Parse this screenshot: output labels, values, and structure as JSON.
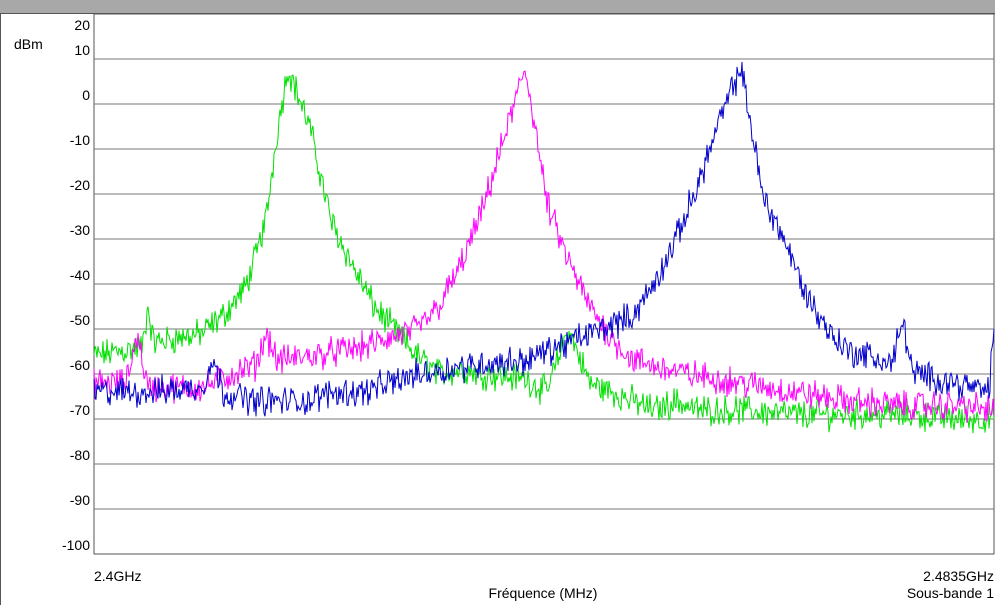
{
  "chart_data": {
    "type": "line",
    "unit_label": "dBm",
    "xlabel": "Fréquence (MHz)",
    "x_start_label": "2.4GHz",
    "x_end_label": "2.4835GHz",
    "x_range_mhz": [
      2400,
      2483.5
    ],
    "footer_right": "Sous-bande 1",
    "ylim": [
      -100,
      20
    ],
    "yticks": [
      "20",
      "10",
      "0",
      "-10",
      "-20",
      "-30",
      "-40",
      "-50",
      "-60",
      "-70",
      "-80",
      "-90",
      "-100"
    ],
    "grid": true,
    "series": [
      {
        "color": "#00e000",
        "x": [
          2400,
          2404.5,
          2405,
          2405.5,
          2410,
          2412,
          2414,
          2415,
          2416,
          2417,
          2418,
          2420,
          2422,
          2424,
          2426,
          2430,
          2432,
          2434,
          2436,
          2440,
          2442,
          2444,
          2446,
          2450,
          2452,
          2454,
          2456,
          2460,
          2465,
          2470,
          2475,
          2480,
          2483.5
        ],
        "y": [
          -56,
          -54,
          -45,
          -53,
          -51,
          -47,
          -41,
          -34,
          -25,
          -6,
          8,
          -5,
          -26,
          -36,
          -45,
          -56,
          -60,
          -59,
          -60,
          -61,
          -64,
          -50,
          -62,
          -66,
          -68,
          -66,
          -68,
          -68,
          -69,
          -69,
          -69,
          -70,
          -70
        ]
      },
      {
        "color": "#ff00ff",
        "x": [
          2400,
          2403,
          2404,
          2405,
          2410,
          2415,
          2416,
          2417,
          2420,
          2425,
          2430,
          2432,
          2434,
          2436,
          2438,
          2440,
          2441,
          2442,
          2444,
          2446,
          2448,
          2450,
          2455,
          2460,
          2465,
          2470,
          2475,
          2480,
          2483.5
        ],
        "y": [
          -62,
          -62,
          -51,
          -63,
          -63,
          -58,
          -51,
          -57,
          -56,
          -54,
          -50,
          -45,
          -36,
          -24,
          -8,
          8,
          -6,
          -22,
          -35,
          -45,
          -52,
          -57,
          -60,
          -62,
          -64,
          -66,
          -67,
          -67,
          -68
        ]
      },
      {
        "color": "#0000cc",
        "x": [
          2400,
          2405,
          2410,
          2411,
          2412,
          2415,
          2420,
          2422,
          2425,
          2430,
          2435,
          2440,
          2445,
          2450,
          2452,
          2454,
          2456,
          2458,
          2460,
          2461,
          2462,
          2464,
          2466,
          2468,
          2470,
          2472,
          2474,
          2475,
          2476,
          2480,
          2483,
          2483.5
        ],
        "y": [
          -64,
          -64,
          -63,
          -57,
          -64,
          -66,
          -66,
          -64,
          -64,
          -60,
          -58,
          -57,
          -52,
          -47,
          -40,
          -30,
          -18,
          -4,
          8,
          -5,
          -20,
          -30,
          -42,
          -50,
          -55,
          -56,
          -58,
          -48,
          -60,
          -62,
          -64,
          -50
        ]
      }
    ]
  }
}
